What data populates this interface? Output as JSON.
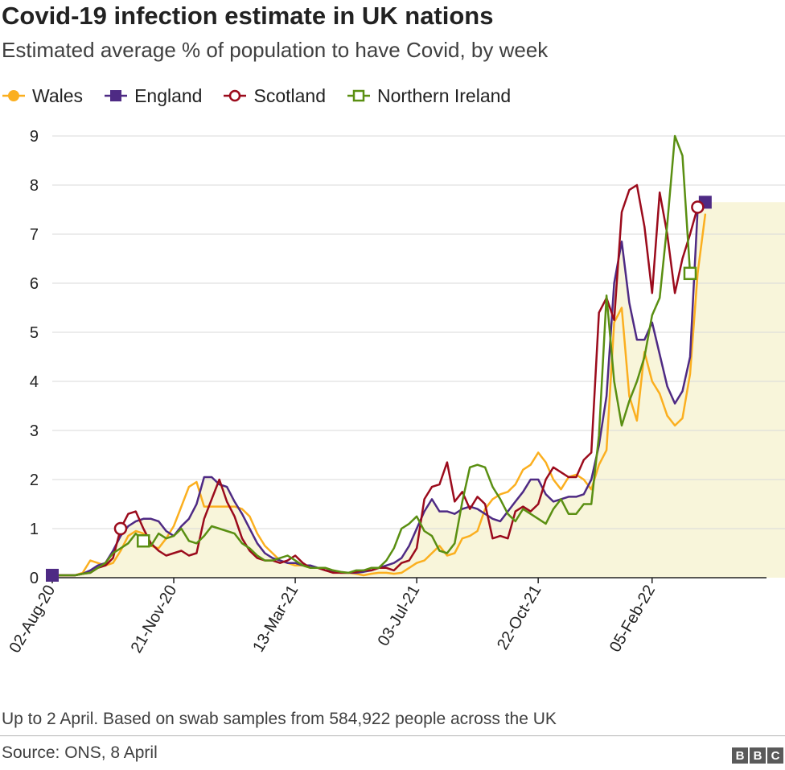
{
  "header": {
    "title": "Covid-19 infection estimate in UK nations",
    "subtitle": "Estimated average % of population to have Covid, by week"
  },
  "footer": {
    "note": "Up to 2 April. Based on swab samples from 584,922 people across the UK",
    "source": "Source: ONS, 8 April",
    "logo_letters": [
      "B",
      "B",
      "C"
    ]
  },
  "colors": {
    "wales": "#fbaf1f",
    "england": "#4e2a84",
    "scotland": "#9b0b1c",
    "northern_ireland": "#5a8f12",
    "area_fill": "#f8f5da",
    "grid": "#d9d9d9"
  },
  "chart_data": {
    "type": "line",
    "x_start": "2020-08-02",
    "x_step_days": 7,
    "x_ticks": [
      "02-Aug-20",
      "21-Nov-20",
      "13-Mar-21",
      "03-Jul-21",
      "22-Oct-21",
      "05-Feb-22"
    ],
    "ylim": [
      0,
      9
    ],
    "yticks": [
      0,
      1,
      2,
      3,
      4,
      5,
      6,
      7,
      8,
      9
    ],
    "grid": "horizontal",
    "legend_position": "top-left",
    "shaded_area": "England",
    "series": [
      {
        "name": "Wales",
        "color": "#fbaf1f",
        "marker": "circle-filled",
        "values": [
          0.05,
          0.05,
          0.05,
          0.05,
          0.1,
          0.35,
          0.3,
          0.25,
          0.3,
          0.55,
          0.85,
          0.95,
          0.9,
          0.65,
          0.6,
          0.8,
          1.05,
          1.45,
          1.85,
          1.95,
          1.45,
          1.45,
          1.45,
          1.45,
          1.45,
          1.4,
          1.25,
          0.9,
          0.65,
          0.5,
          0.35,
          0.3,
          0.25,
          0.25,
          0.2,
          0.2,
          0.15,
          0.15,
          0.1,
          0.1,
          0.08,
          0.05,
          0.08,
          0.1,
          0.1,
          0.08,
          0.1,
          0.2,
          0.3,
          0.35,
          0.5,
          0.65,
          0.45,
          0.5,
          0.8,
          0.85,
          0.95,
          1.4,
          1.6,
          1.7,
          1.75,
          1.9,
          2.2,
          2.3,
          2.55,
          2.35,
          2.0,
          1.8,
          2.05,
          2.1,
          2.0,
          1.8,
          2.3,
          2.6,
          5.2,
          5.5,
          3.7,
          3.2,
          4.6,
          4.0,
          3.75,
          3.3,
          3.1,
          3.25,
          4.15,
          6.2,
          7.4
        ]
      },
      {
        "name": "England",
        "color": "#4e2a84",
        "marker": "square-filled",
        "values": [
          0.05,
          0.05,
          0.05,
          0.05,
          0.08,
          0.15,
          0.25,
          0.3,
          0.55,
          0.85,
          1.05,
          1.15,
          1.2,
          1.2,
          1.15,
          0.95,
          0.85,
          1.05,
          1.2,
          1.5,
          2.05,
          2.05,
          1.9,
          1.85,
          1.55,
          1.3,
          1.0,
          0.7,
          0.5,
          0.4,
          0.35,
          0.3,
          0.3,
          0.25,
          0.25,
          0.2,
          0.15,
          0.12,
          0.1,
          0.1,
          0.1,
          0.12,
          0.15,
          0.2,
          0.25,
          0.3,
          0.4,
          0.65,
          1.0,
          1.35,
          1.6,
          1.35,
          1.35,
          1.3,
          1.4,
          1.45,
          1.4,
          1.3,
          1.2,
          1.15,
          1.35,
          1.55,
          1.75,
          2.0,
          2.0,
          1.7,
          1.55,
          1.6,
          1.65,
          1.65,
          1.7,
          2.0,
          2.7,
          3.7,
          6.0,
          6.85,
          5.6,
          4.85,
          4.85,
          5.2,
          4.55,
          3.9,
          3.55,
          3.8,
          4.5,
          7.5,
          7.65
        ]
      },
      {
        "name": "Scotland",
        "color": "#9b0b1c",
        "marker": "circle-open",
        "values": [
          0.05,
          0.05,
          0.05,
          0.05,
          0.08,
          0.1,
          0.2,
          0.25,
          0.4,
          1.0,
          1.3,
          1.35,
          1.0,
          0.7,
          0.55,
          0.45,
          0.5,
          0.55,
          0.45,
          0.5,
          1.2,
          1.6,
          2.0,
          1.55,
          1.25,
          0.8,
          0.55,
          0.4,
          0.35,
          0.35,
          0.3,
          0.35,
          0.45,
          0.3,
          0.2,
          0.2,
          0.15,
          0.1,
          0.1,
          0.1,
          0.12,
          0.15,
          0.15,
          0.2,
          0.2,
          0.15,
          0.3,
          0.35,
          0.6,
          1.6,
          1.85,
          1.9,
          2.35,
          1.55,
          1.75,
          1.4,
          1.65,
          1.5,
          0.8,
          0.85,
          0.8,
          1.35,
          1.45,
          1.35,
          1.5,
          2.0,
          2.25,
          2.15,
          2.05,
          2.05,
          2.4,
          2.55,
          5.4,
          5.7,
          5.25,
          7.45,
          7.9,
          8.0,
          7.15,
          5.8,
          7.85,
          7.0,
          5.8,
          6.5,
          7.0,
          7.55
        ]
      },
      {
        "name": "Northern Ireland",
        "color": "#5a8f12",
        "marker": "square-open",
        "values": [
          0.05,
          0.05,
          0.05,
          0.05,
          0.08,
          0.1,
          0.2,
          0.3,
          0.5,
          0.6,
          0.7,
          0.9,
          0.75,
          0.65,
          0.9,
          0.8,
          0.85,
          1.0,
          0.75,
          0.7,
          0.85,
          1.05,
          1.0,
          0.95,
          0.9,
          0.7,
          0.6,
          0.45,
          0.35,
          0.35,
          0.4,
          0.45,
          0.35,
          0.25,
          0.2,
          0.2,
          0.2,
          0.15,
          0.12,
          0.1,
          0.15,
          0.15,
          0.2,
          0.2,
          0.35,
          0.6,
          1.0,
          1.1,
          1.25,
          0.95,
          0.85,
          0.55,
          0.5,
          0.7,
          1.55,
          2.25,
          2.3,
          2.25,
          1.85,
          1.6,
          1.3,
          1.15,
          1.4,
          1.3,
          1.2,
          1.1,
          1.4,
          1.6,
          1.3,
          1.3,
          1.5,
          1.5,
          2.9,
          5.75,
          4.0,
          3.1,
          3.6,
          4.0,
          4.5,
          5.35,
          5.7,
          7.2,
          9.0,
          8.6,
          6.2
        ]
      }
    ]
  }
}
